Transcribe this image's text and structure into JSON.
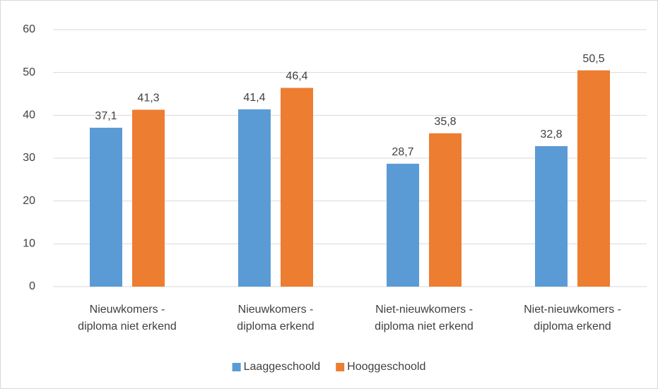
{
  "chart_data": {
    "type": "bar",
    "categories": [
      "Nieuwkomers - diploma niet erkend",
      "Nieuwkomers - diploma erkend",
      "Niet-nieuwkomers - diploma niet erkend",
      "Niet-nieuwkomers - diploma erkend"
    ],
    "series": [
      {
        "name": "Laaggeschoold",
        "color": "#5b9bd5",
        "values": [
          37.1,
          41.4,
          28.7,
          32.8
        ],
        "value_labels": [
          "37,1",
          "41,4",
          "28,7",
          "32,8"
        ]
      },
      {
        "name": "Hooggeschoold",
        "color": "#ed7d31",
        "values": [
          41.3,
          46.4,
          35.8,
          50.5
        ],
        "value_labels": [
          "41,3",
          "46,4",
          "35,8",
          "50,5"
        ]
      }
    ],
    "ylim": [
      0,
      60
    ],
    "yticks": [
      0,
      10,
      20,
      30,
      40,
      50,
      60
    ],
    "grid": true,
    "legend": "bottom"
  }
}
